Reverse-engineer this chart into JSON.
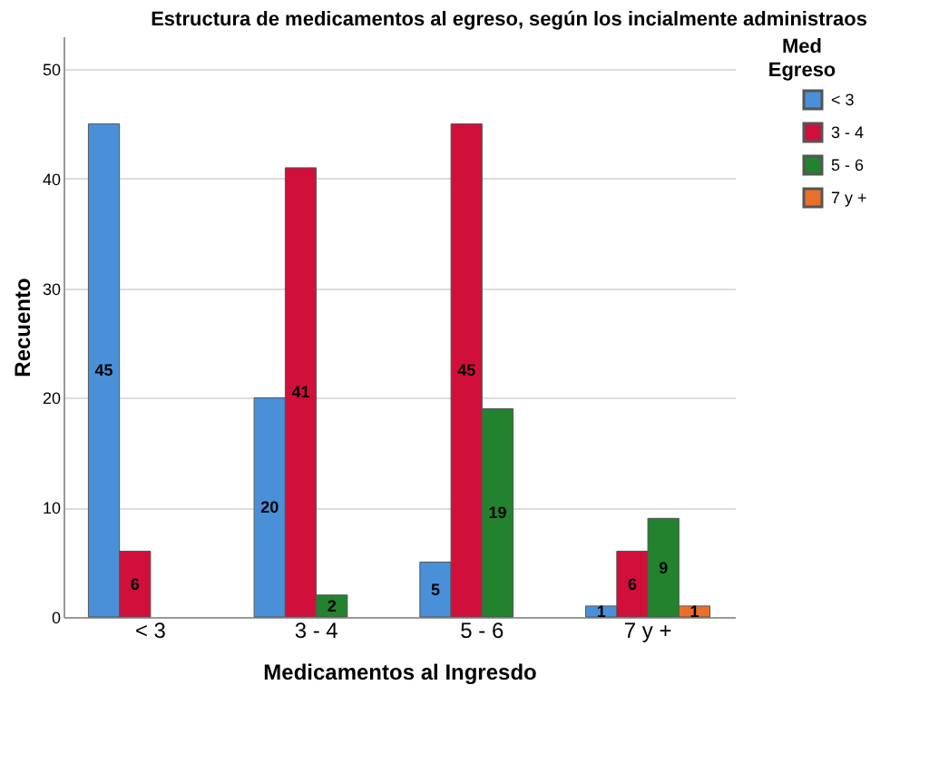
{
  "chart_data": {
    "type": "bar",
    "title": "Estructura de medicamentos al egreso, según los incialmente administraos",
    "xlabel": "Medicamentos al Ingresdo",
    "ylabel": "Recuento",
    "legend_title": [
      "Med",
      "Egreso"
    ],
    "categories": [
      "< 3",
      "3 - 4",
      "5 - 6",
      "7 y +"
    ],
    "series": [
      {
        "name": "< 3",
        "color": "#4a90d9",
        "values": [
          45,
          20,
          5,
          1
        ]
      },
      {
        "name": "3 - 4",
        "color": "#d0103a",
        "values": [
          6,
          41,
          45,
          6
        ]
      },
      {
        "name": "5 - 6",
        "color": "#23822e",
        "values": [
          null,
          2,
          19,
          9
        ]
      },
      {
        "name": "7 y +",
        "color": "#e8702a",
        "values": [
          null,
          null,
          null,
          1
        ]
      }
    ],
    "ylim": [
      0,
      53
    ],
    "yticks": [
      0,
      10,
      20,
      30,
      40,
      50
    ],
    "grid": "y",
    "legend": "top right",
    "data_labels": true
  }
}
